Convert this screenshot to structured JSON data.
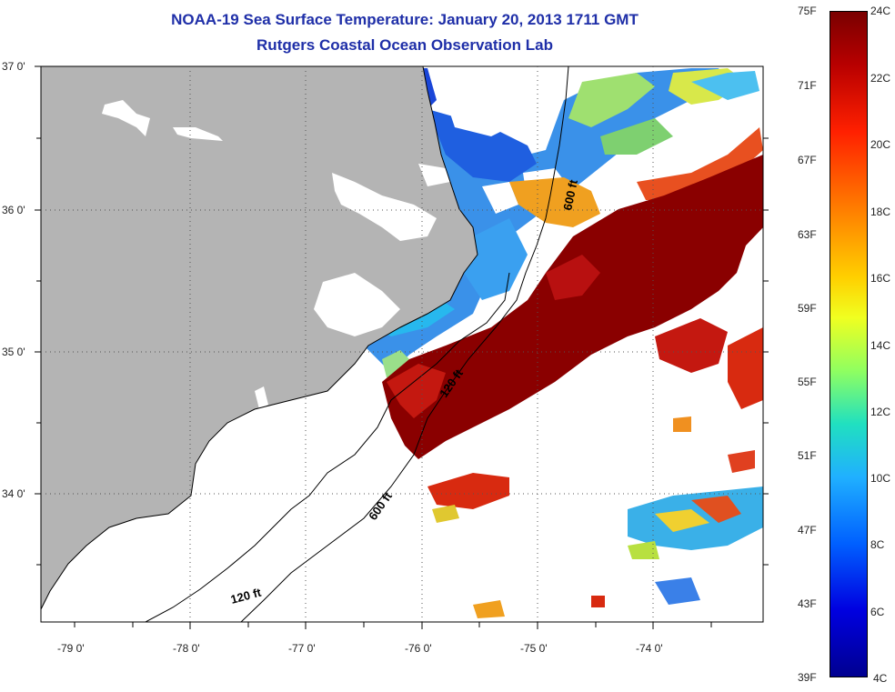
{
  "title_line1": "NOAA-19 Sea Surface Temperature:  January 20, 2013 1711 GMT",
  "title_line2": "Rutgers Coastal Ocean Observation Lab",
  "lat_labels": [
    "37 0'",
    "36 0'",
    "35 0'",
    "34 0'"
  ],
  "lon_labels": [
    "-79 0'",
    "-78 0'",
    "-77 0'",
    "-76 0'",
    "-75 0'",
    "-74 0'"
  ],
  "depth_labels": [
    "600 ft",
    "120 ft",
    "600 ft",
    "120 ft"
  ],
  "colorbar": {
    "fahrenheit": [
      "75F",
      "71F",
      "67F",
      "63F",
      "59F",
      "55F",
      "51F",
      "47F",
      "43F",
      "39F"
    ],
    "celsius": [
      "24C",
      "22C",
      "20C",
      "18C",
      "16C",
      "14C",
      "12C",
      "10C",
      "8C",
      "6C",
      "4C"
    ]
  },
  "colors": {
    "land": "#b4b4b4",
    "title": "#1f2fa8",
    "warm": "#8a0000",
    "cold": "#1a46d8"
  }
}
